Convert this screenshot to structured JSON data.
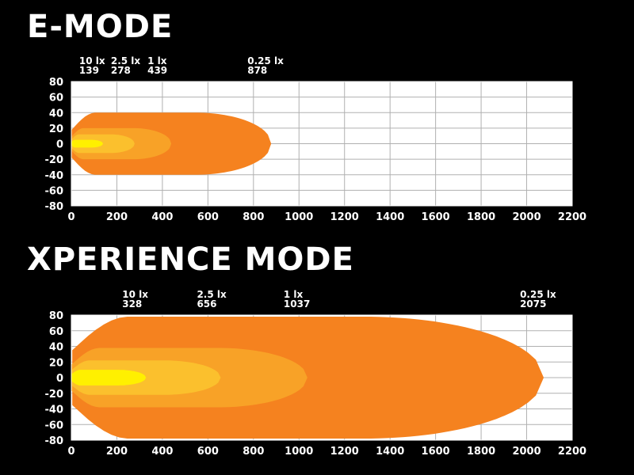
{
  "titles": {
    "e_mode": "E-MODE",
    "xperience_mode": "XPERIENCE MODE"
  },
  "colors": {
    "background": "#000000",
    "plot_background": "#ffffff",
    "grid": "#b0b0b0",
    "zone_0_25lx": "#f5821f",
    "zone_1lx": "#f8a227",
    "zone_2_5lx": "#fbc02d",
    "zone_10lx": "#fff000"
  },
  "chart_data": [
    {
      "type": "area",
      "title": "E-MODE",
      "xlim": [
        0,
        2200
      ],
      "ylim": [
        -80,
        80
      ],
      "x_ticks": [
        0,
        200,
        400,
        600,
        800,
        1000,
        1200,
        1400,
        1600,
        1800,
        2000,
        2200
      ],
      "y_ticks": [
        80,
        60,
        40,
        20,
        0,
        -20,
        -40,
        -60,
        -80
      ],
      "grid": true,
      "annotations": [
        {
          "label": "10 lx",
          "value": "139",
          "x": 139
        },
        {
          "label": "2.5 lx",
          "value": "278",
          "x": 278
        },
        {
          "label": "1 lx",
          "value": "439",
          "x": 439
        },
        {
          "label": "0.25 lx",
          "value": "878",
          "x": 878
        }
      ],
      "series": [
        {
          "name": "0.25 lx",
          "reach": 878,
          "half_width": 40
        },
        {
          "name": "1 lx",
          "reach": 439,
          "half_width": 20
        },
        {
          "name": "2.5 lx",
          "reach": 278,
          "half_width": 12
        },
        {
          "name": "10 lx",
          "reach": 139,
          "half_width": 5
        }
      ]
    },
    {
      "type": "area",
      "title": "XPERIENCE MODE",
      "xlim": [
        0,
        2200
      ],
      "ylim": [
        -80,
        80
      ],
      "x_ticks": [
        0,
        200,
        400,
        600,
        800,
        1000,
        1200,
        1400,
        1600,
        1800,
        2000,
        2200
      ],
      "y_ticks": [
        80,
        60,
        40,
        20,
        0,
        -20,
        -40,
        -60,
        -80
      ],
      "grid": true,
      "annotations": [
        {
          "label": "10 lx",
          "value": "328",
          "x": 328
        },
        {
          "label": "2.5 lx",
          "value": "656",
          "x": 656
        },
        {
          "label": "1 lx",
          "value": "1037",
          "x": 1037
        },
        {
          "label": "0.25 lx",
          "value": "2075",
          "x": 2075
        }
      ],
      "series": [
        {
          "name": "0.25 lx",
          "reach": 2075,
          "half_width": 78
        },
        {
          "name": "1 lx",
          "reach": 1037,
          "half_width": 38
        },
        {
          "name": "2.5 lx",
          "reach": 656,
          "half_width": 22
        },
        {
          "name": "10 lx",
          "reach": 328,
          "half_width": 10
        }
      ]
    }
  ]
}
